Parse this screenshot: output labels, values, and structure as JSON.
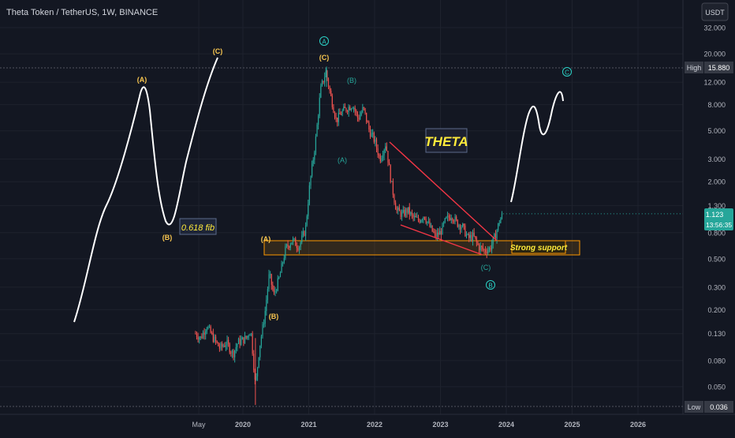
{
  "header": {
    "title": "Theta Token / TetherUS, 1W, BINANCE"
  },
  "price_axis": {
    "currency": "USDT",
    "high_label": "High",
    "high_value": "15.880",
    "low_label": "Low",
    "low_value": "0.036",
    "current_price": "1.123",
    "countdown": "13:56:35"
  },
  "colors": {
    "background": "#131722",
    "grid": "#1e222d",
    "candle_up": "#26a69a",
    "candle_down": "#ef5350",
    "wedge": "#f23645",
    "support_zone": "#ff9800",
    "wave_label": "#f9c74f",
    "circle_label": "#2bd2c6",
    "annotation_text": "#ffeb3b"
  },
  "annotations": {
    "theta": "THETA",
    "fib": "0.618 fib",
    "support": "Strong support",
    "left_A": "(A)",
    "left_B": "(B)",
    "left_C": "(C)",
    "chart_A": "(A)",
    "chart_B": "(B)",
    "chart_C": "(C)",
    "sub_A": "(A)",
    "sub_B": "(B)",
    "sub_C": "(C)",
    "circle_A": "A",
    "circle_B": "B",
    "circle_C": "C"
  },
  "chart_data": {
    "type": "candlestick",
    "title": "Theta Token / TetherUS, 1W, BINANCE",
    "y_scale": "log",
    "y_ticks": [
      32,
      20,
      12,
      8,
      5,
      3,
      2,
      1.3,
      0.8,
      0.5,
      0.3,
      0.2,
      0.13,
      0.08,
      0.05
    ],
    "y_tick_labels": [
      "32.000",
      "20.000",
      "12.000",
      "8.000",
      "5.000",
      "3.000",
      "2.000",
      "1.300",
      "0.800",
      "0.500",
      "0.300",
      "0.200",
      "0.130",
      "0.080",
      "0.050"
    ],
    "x_tick_labels": [
      "May",
      "2020",
      "2021",
      "2022",
      "2023",
      "2024",
      "2025",
      "2026"
    ],
    "x_tick_dates": [
      2019.33,
      2020.0,
      2021.0,
      2022.0,
      2023.0,
      2024.0,
      2025.0,
      2026.0
    ],
    "high": 15.88,
    "low": 0.036,
    "last_price": 1.123,
    "support_zone": [
      0.55,
      0.7
    ],
    "price_path": [
      [
        2019.28,
        0.13
      ],
      [
        2019.36,
        0.12
      ],
      [
        2019.45,
        0.15
      ],
      [
        2019.55,
        0.12
      ],
      [
        2019.65,
        0.1
      ],
      [
        2019.75,
        0.11
      ],
      [
        2019.85,
        0.09
      ],
      [
        2019.92,
        0.11
      ],
      [
        2020.05,
        0.12
      ],
      [
        2020.12,
        0.14
      ],
      [
        2020.19,
        0.05
      ],
      [
        2020.25,
        0.1
      ],
      [
        2020.33,
        0.18
      ],
      [
        2020.4,
        0.38
      ],
      [
        2020.47,
        0.26
      ],
      [
        2020.55,
        0.35
      ],
      [
        2020.65,
        0.6
      ],
      [
        2020.75,
        0.7
      ],
      [
        2020.85,
        0.62
      ],
      [
        2020.95,
        0.85
      ],
      [
        2021.02,
        2.0
      ],
      [
        2021.1,
        4.0
      ],
      [
        2021.18,
        10.5
      ],
      [
        2021.26,
        14.5
      ],
      [
        2021.33,
        9.5
      ],
      [
        2021.42,
        6.0
      ],
      [
        2021.5,
        7.0
      ],
      [
        2021.58,
        7.5
      ],
      [
        2021.67,
        8.0
      ],
      [
        2021.75,
        6.2
      ],
      [
        2021.83,
        7.5
      ],
      [
        2021.92,
        5.0
      ],
      [
        2022.0,
        4.2
      ],
      [
        2022.08,
        3.0
      ],
      [
        2022.17,
        4.0
      ],
      [
        2022.25,
        2.0
      ],
      [
        2022.33,
        1.2
      ],
      [
        2022.42,
        1.1
      ],
      [
        2022.5,
        1.2
      ],
      [
        2022.58,
        1.05
      ],
      [
        2022.67,
        1.0
      ],
      [
        2022.75,
        1.1
      ],
      [
        2022.83,
        0.9
      ],
      [
        2022.92,
        0.75
      ],
      [
        2023.0,
        0.8
      ],
      [
        2023.08,
        1.0
      ],
      [
        2023.17,
        1.1
      ],
      [
        2023.25,
        0.95
      ],
      [
        2023.33,
        0.9
      ],
      [
        2023.42,
        0.72
      ],
      [
        2023.5,
        0.75
      ],
      [
        2023.58,
        0.62
      ],
      [
        2023.67,
        0.58
      ],
      [
        2023.75,
        0.6
      ],
      [
        2023.83,
        0.75
      ],
      [
        2023.9,
        1.0
      ],
      [
        2023.95,
        1.123
      ]
    ]
  }
}
